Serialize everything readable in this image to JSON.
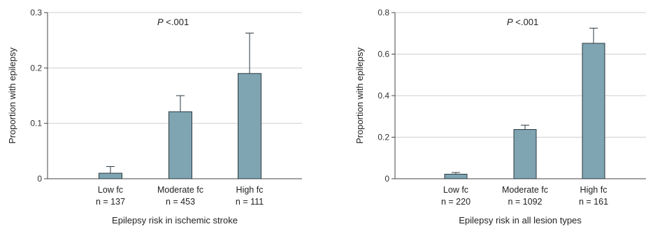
{
  "chart_data": [
    {
      "type": "bar",
      "xlabel": "Epilepsy risk in ischemic stroke",
      "ylabel": "Proportion with epilepsy",
      "annotation": {
        "italic": "P",
        "text": " <.001"
      },
      "ylim": [
        0,
        0.3
      ],
      "yticks": [
        "0",
        "0.1",
        "0.2",
        "0.3"
      ],
      "ytick_values": [
        0,
        0.1,
        0.2,
        0.3
      ],
      "grid": true,
      "categories": [
        {
          "label": "Low fc",
          "n": "n = 137"
        },
        {
          "label": "Moderate fc",
          "n": "n = 453"
        },
        {
          "label": "High fc",
          "n": "n = 111"
        }
      ],
      "values": [
        0.01,
        0.121,
        0.19
      ],
      "error_upper": [
        0.022,
        0.15,
        0.263
      ]
    },
    {
      "type": "bar",
      "xlabel": "Epilepsy risk in all lesion types",
      "ylabel": "Proportion with epilepsy",
      "annotation": {
        "italic": "P",
        "text": " <.001"
      },
      "ylim": [
        0,
        0.8
      ],
      "yticks": [
        "0",
        "0.2",
        "0.4",
        "0.6",
        "0.8"
      ],
      "ytick_values": [
        0,
        0.2,
        0.4,
        0.6,
        0.8
      ],
      "grid": true,
      "categories": [
        {
          "label": "Low fc",
          "n": "n = 220"
        },
        {
          "label": "Moderate fc",
          "n": "n = 1092"
        },
        {
          "label": "High fc",
          "n": "n = 161"
        }
      ],
      "values": [
        0.022,
        0.237,
        0.652
      ],
      "error_upper": [
        0.03,
        0.258,
        0.725
      ]
    }
  ]
}
